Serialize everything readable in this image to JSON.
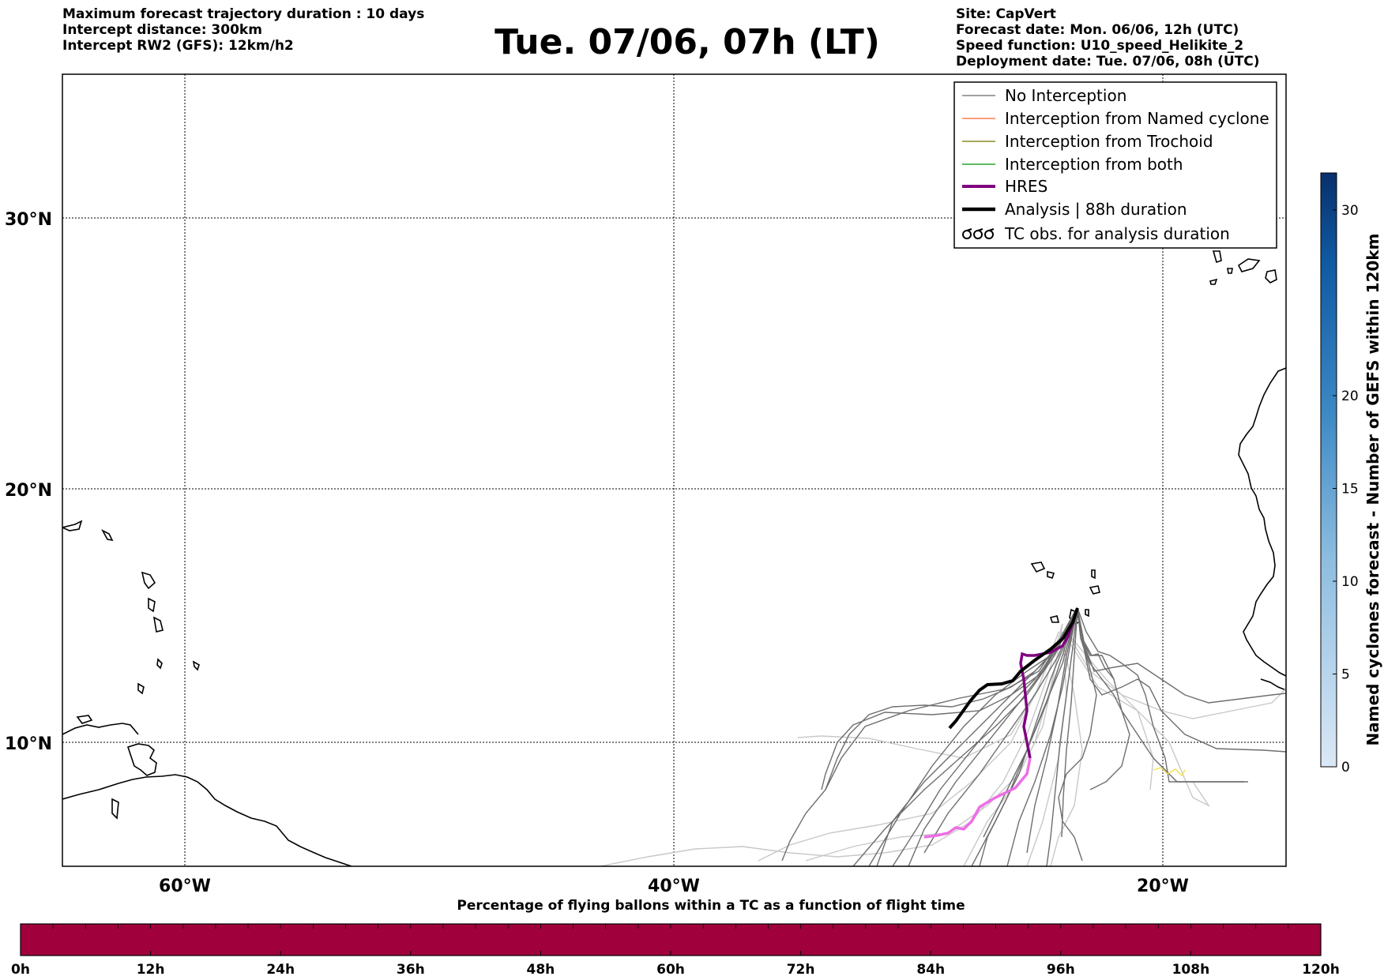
{
  "header": {
    "title": "Tue. 07/06, 07h (LT)",
    "left_lines": [
      "Maximum forecast trajectory duration : 10 days",
      "Intercept distance: 300km",
      "Intercept RW2 (GFS):  12km/h2"
    ],
    "right_lines": [
      "Site: CapVert",
      "Forecast date: Mon. 06/06, 12h (UTC)",
      "Speed function: U10_speed_Helikite_2",
      "Deployment date: Tue. 07/06, 08h (UTC)"
    ]
  },
  "map": {
    "lon_ticks": [
      "60°W",
      "40°W",
      "20°W"
    ],
    "lat_ticks": [
      "30°N",
      "20°N",
      "10°N"
    ],
    "colors": {
      "no_interception": "#6e6e6e",
      "no_interception_light": "#c8c8c8",
      "named_cyclone": "#ff7f50",
      "trochoid": "#8b8b2a",
      "both": "#2ca02c",
      "hres": "#800080",
      "hres_late": "#ee6ee6",
      "analysis": "#000000",
      "tc_obs": "#f0e04a"
    }
  },
  "legend": {
    "items": [
      {
        "label": "No Interception"
      },
      {
        "label": "Interception from Named cyclone"
      },
      {
        "label": "Interception from Trochoid"
      },
      {
        "label": "Interception from both"
      },
      {
        "label": "HRES"
      },
      {
        "label": "Analysis | 88h duration"
      },
      {
        "label": "TC obs. for analysis duration"
      }
    ]
  },
  "colorbar_right": {
    "label": "Named cyclones forecast - Number of GEFS within 120km",
    "ticks": [
      "0",
      "5",
      "10",
      "15",
      "20",
      "30"
    ],
    "scale_max": 32
  },
  "colorbar_bottom": {
    "label": "Percentage of flying ballons within a TC as a function of flight time",
    "ticks": [
      "0h",
      "12h",
      "24h",
      "36h",
      "48h",
      "60h",
      "72h",
      "84h",
      "96h",
      "108h",
      "120h"
    ],
    "fill_color": "#a0003c"
  }
}
